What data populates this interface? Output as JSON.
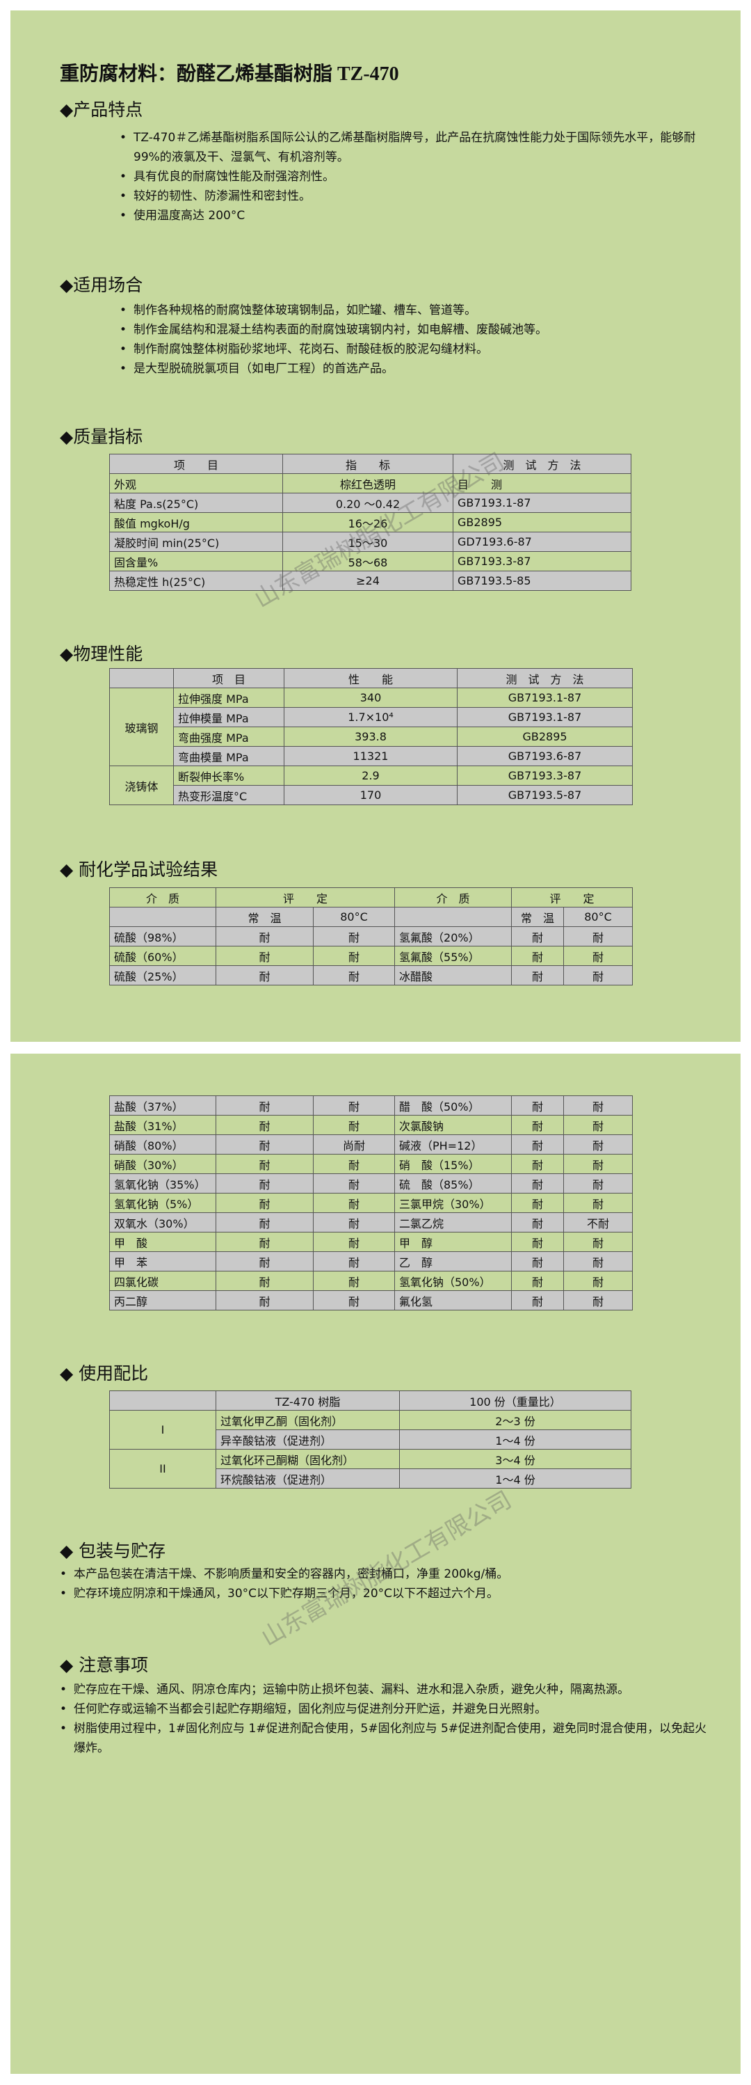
{
  "title": "重防腐材料：酚醛乙烯基酯树脂 TZ-470",
  "watermarks": [
    "山东富瑞树脂化工有限公司",
    "山东富瑞树脂化工有限公司"
  ],
  "features": {
    "heading": "◆产品特点",
    "items": [
      "TZ-470＃乙烯基酯树脂系国际公认的乙烯基酯树脂牌号，此产品在抗腐蚀性能力处于国际领先水平，能够耐 99%的液氯及干、湿氯气、有机溶剂等。",
      "具有优良的耐腐蚀性能及耐强溶剂性。",
      "较好的韧性、防渗漏性和密封性。",
      "使用温度高达 200°C"
    ]
  },
  "applications": {
    "heading": "◆适用场合",
    "items": [
      "制作各种规格的耐腐蚀整体玻璃钢制品，如贮罐、槽车、管道等。",
      "制作金属结构和混凝土结构表面的耐腐蚀玻璃钢内衬，如电解槽、废酸碱池等。",
      "制作耐腐蚀整体树脂砂浆地坪、花岗石、耐酸硅板的胶泥勾缝材料。",
      "是大型脱硫脱氯项目（如电厂工程）的首选产品。"
    ]
  },
  "quality_table": {
    "heading": "◆质量指标",
    "header": [
      "项　　目",
      "指　　标",
      "测　试　方　法"
    ],
    "rows": [
      [
        "外观",
        "棕红色透明",
        "目　　测"
      ],
      [
        "粘度 Pa.s(25°C)",
        "0.20 ～0.42",
        "GB7193.1-87"
      ],
      [
        "酸值 mgkoH/g",
        "16～26",
        "GB2895"
      ],
      [
        "凝胶时间 min(25°C)",
        "15～30",
        "GD7193.6-87"
      ],
      [
        "固含量%",
        "58～68",
        "GB7193.3-87"
      ],
      [
        "热稳定性 h(25°C)",
        "≥24",
        "GB7193.5-85"
      ]
    ]
  },
  "physical_table": {
    "heading": "◆物理性能",
    "header": [
      "项　目",
      "性　　能",
      "测　试　方　法"
    ],
    "groups": [
      {
        "label": "玻璃钢",
        "rows": [
          [
            "拉伸强度 MPa",
            "340",
            "GB7193.1-87"
          ],
          [
            "拉伸模量 MPa",
            "1.7×10⁴",
            "GB7193.1-87"
          ],
          [
            "弯曲强度 MPa",
            "393.8",
            "GB2895"
          ],
          [
            "弯曲模量 MPa",
            "11321",
            "GB7193.6-87"
          ]
        ]
      },
      {
        "label": "浇铸体",
        "rows": [
          [
            "断裂伸长率%",
            "2.9",
            "GB7193.3-87"
          ],
          [
            "热变形温度°C",
            "170",
            "GB7193.5-87"
          ]
        ]
      }
    ]
  },
  "chemical_table": {
    "heading": "◆ 耐化学品试验结果",
    "header_top": [
      "介　质",
      "评　　定",
      "介　质",
      "评　　定"
    ],
    "header_sub": [
      "常　温",
      "80°C",
      "常　温",
      "80°C"
    ],
    "rows": [
      [
        "硫酸（98%）",
        "耐",
        "耐",
        "氢氟酸（20%）",
        "耐",
        "耐"
      ],
      [
        "硫酸（60%）",
        "耐",
        "耐",
        "氢氟酸（55%）",
        "耐",
        "耐"
      ],
      [
        "硫酸（25%）",
        "耐",
        "耐",
        "冰醋酸",
        "耐",
        "耐"
      ]
    ]
  },
  "chemical_table_continued": {
    "rows": [
      [
        "盐酸（37%）",
        "耐",
        "耐",
        "醋　酸（50%）",
        "耐",
        "耐"
      ],
      [
        "盐酸（31%）",
        "耐",
        "耐",
        "次氯酸钠",
        "耐",
        "耐"
      ],
      [
        "硝酸（80%）",
        "耐",
        "尚耐",
        "碱液（PH=12）",
        "耐",
        "耐"
      ],
      [
        "硝酸（30%）",
        "耐",
        "耐",
        "硝　酸（15%）",
        "耐",
        "耐"
      ],
      [
        "氢氧化钠（35%）",
        "耐",
        "耐",
        "硫　酸（85%）",
        "耐",
        "耐"
      ],
      [
        "氢氧化钠（5%）",
        "耐",
        "耐",
        "三氯甲烷（30%）",
        "耐",
        "耐"
      ],
      [
        "双氧水（30%）",
        "耐",
        "耐",
        "二氯乙烷",
        "耐",
        "不耐"
      ],
      [
        "甲　酸",
        "耐",
        "耐",
        "甲　醇",
        "耐",
        "耐"
      ],
      [
        "甲　苯",
        "耐",
        "耐",
        "乙　醇",
        "耐",
        "耐"
      ],
      [
        "四氯化碳",
        "耐",
        "耐",
        "氢氧化钠（50%）",
        "耐",
        "耐"
      ],
      [
        "丙二醇",
        "耐",
        "耐",
        "氟化氢",
        "耐",
        "耐"
      ]
    ]
  },
  "mix_table": {
    "heading": "◆ 使用配比",
    "header": [
      "TZ-470 树脂",
      "100 份（重量比）"
    ],
    "groups": [
      {
        "label": "I",
        "rows": [
          [
            "过氧化甲乙酮（固化剂）",
            "2～3 份"
          ],
          [
            "异辛酸钴液（促进剂）",
            "1～4 份"
          ]
        ]
      },
      {
        "label": "II",
        "rows": [
          [
            "过氧化环己酮糊（固化剂）",
            "3～4 份"
          ],
          [
            "环烷酸钴液（促进剂）",
            "1～4 份"
          ]
        ]
      }
    ]
  },
  "storage": {
    "heading": "◆ 包装与贮存",
    "items": [
      "本产品包装在清洁干燥、不影响质量和安全的容器内，密封桶口，净重 200kg/桶。",
      "贮存环境应阴凉和干燥通风，30°C以下贮存期三个月，20°C以下不超过六个月。"
    ]
  },
  "notes": {
    "heading": "◆ 注意事项",
    "items": [
      "贮存应在干燥、通风、阴凉仓库内；运输中防止损坏包装、漏料、进水和混入杂质，避免火种，隔离热源。",
      "任何贮存或运输不当都会引起贮存期缩短，固化剂应与促进剂分开贮运，并避免日光照射。",
      "树脂使用过程中，1#固化剂应与 1#促进剂配合使用，5#固化剂应与 5#促进剂配合使用，避免同时混合使用，以免起火爆炸。"
    ]
  }
}
